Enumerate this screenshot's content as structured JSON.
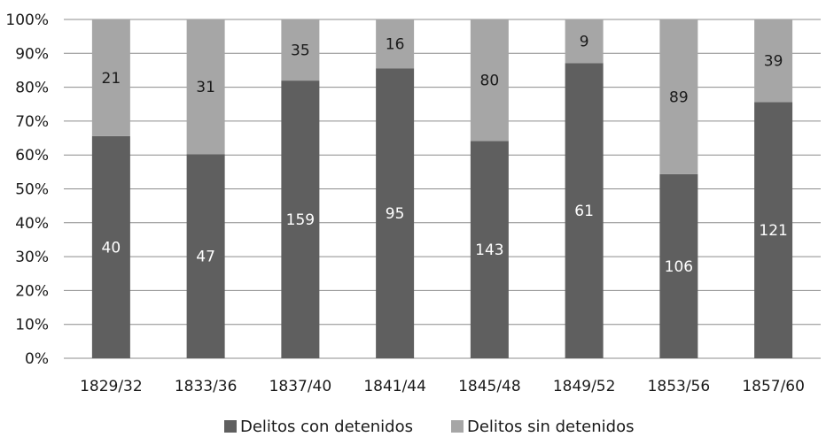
{
  "chart_data": {
    "type": "bar",
    "stacked": "percent",
    "categories": [
      "1829/32",
      "1833/36",
      "1837/40",
      "1841/44",
      "1845/48",
      "1849/52",
      "1853/56",
      "1857/60"
    ],
    "series": [
      {
        "name": "Delitos con detenidos",
        "values": [
          40,
          47,
          159,
          95,
          143,
          61,
          106,
          121
        ],
        "color": "#5f5f5f"
      },
      {
        "name": "Delitos sin detenidos",
        "values": [
          21,
          31,
          35,
          16,
          80,
          9,
          89,
          39
        ],
        "color": "#a6a6a6"
      }
    ],
    "y_ticks": [
      "0%",
      "10%",
      "20%",
      "30%",
      "40%",
      "50%",
      "60%",
      "70%",
      "80%",
      "90%",
      "100%"
    ],
    "ylim": [
      0,
      100
    ],
    "grid": true,
    "legend_position": "bottom"
  }
}
